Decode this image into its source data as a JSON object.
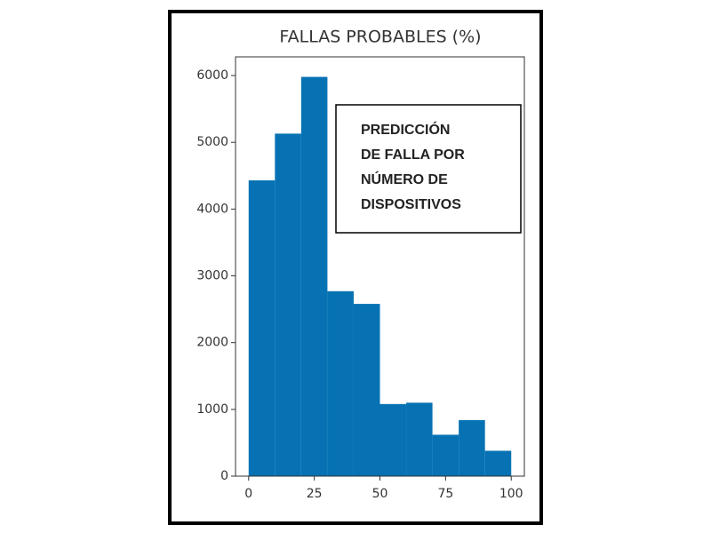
{
  "chart_data": {
    "type": "histogram",
    "title": "FALLAS PROBABLES (%)",
    "bins": [
      0,
      10,
      20,
      30,
      40,
      50,
      60,
      70,
      80,
      90,
      100
    ],
    "counts": [
      4430,
      5130,
      5980,
      2770,
      2580,
      1080,
      1100,
      620,
      840,
      380
    ],
    "color": "#0672b4",
    "xlim": [
      -5,
      105
    ],
    "xticks": [
      0,
      25,
      50,
      75,
      100
    ],
    "ylim": [
      0,
      6280
    ],
    "yticks": [
      0,
      1000,
      2000,
      3000,
      4000,
      5000,
      6000
    ],
    "annotation": [
      "PREDICCIÓN",
      "DE FALLA POR",
      "NÚMERO DE",
      "DISPOSITIVOS"
    ]
  }
}
